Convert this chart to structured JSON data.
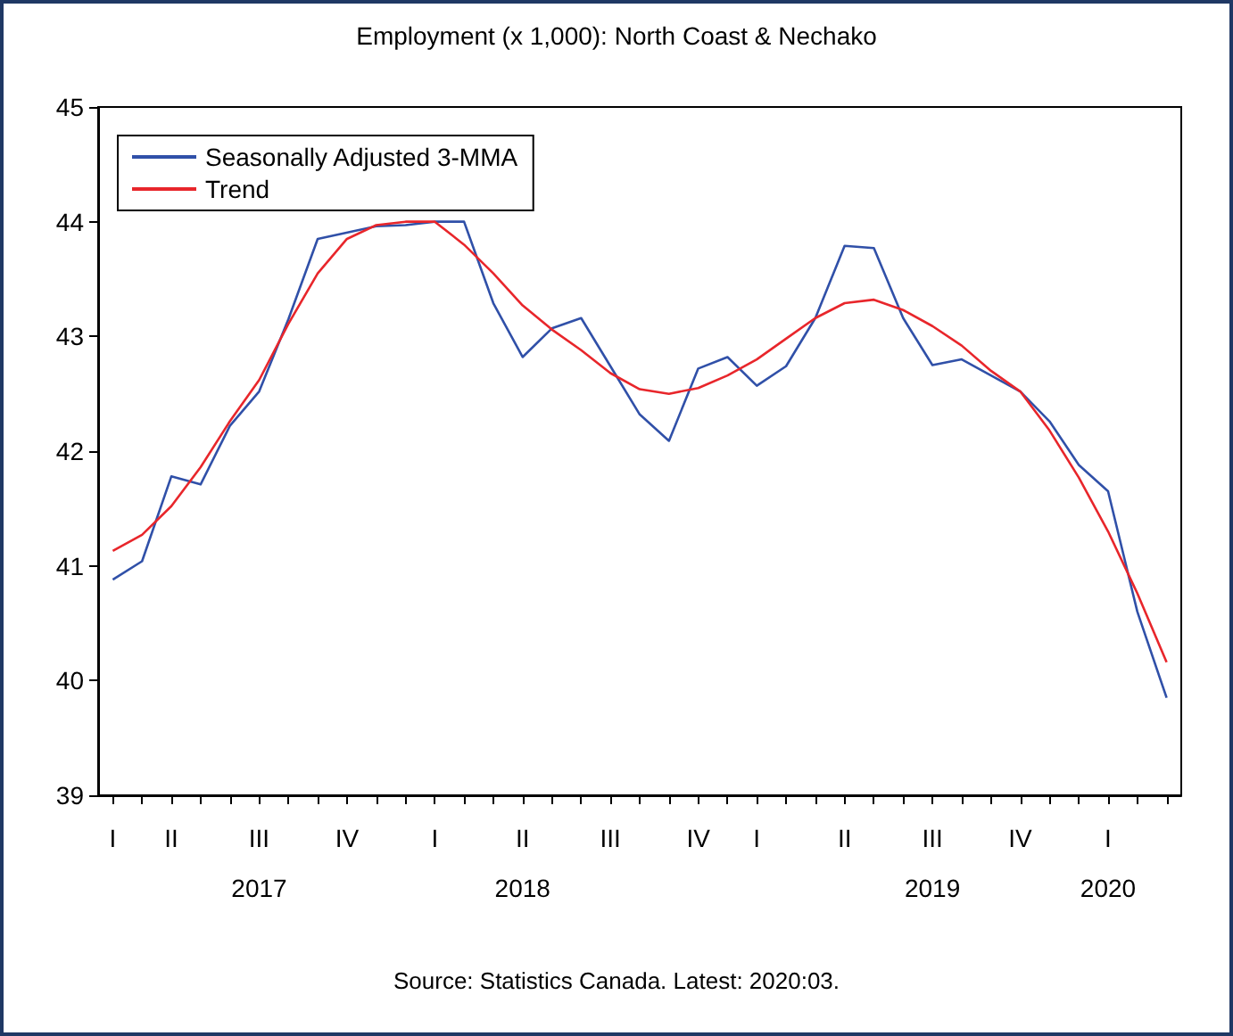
{
  "chart_data": {
    "type": "line",
    "title": "Employment (x 1,000): North Coast & Nechako",
    "categories": [
      "I",
      null,
      "II",
      null,
      null,
      "III\n2017",
      null,
      null,
      "IV",
      null,
      null,
      "I",
      null,
      null,
      "II\n2018",
      null,
      null,
      "III",
      null,
      null,
      "IV",
      null,
      "I",
      null,
      null,
      "II",
      null,
      null,
      "III\n2019",
      null,
      null,
      "IV",
      null,
      null,
      "I\n2020",
      null,
      null
    ],
    "series": [
      {
        "name": "Seasonally Adjusted 3-MMA",
        "color": "#3050a8",
        "values": [
          40.88,
          41.04,
          41.78,
          41.71,
          42.22,
          42.52,
          43.15,
          43.85,
          null,
          43.96,
          43.97,
          44.0,
          44.0,
          43.29,
          42.82,
          43.07,
          43.16,
          42.74,
          42.32,
          42.09,
          42.72,
          42.82,
          42.57,
          42.74,
          43.16,
          43.79,
          43.77,
          43.16,
          42.75,
          42.8,
          42.66,
          42.52,
          42.26,
          41.88,
          41.65,
          40.6,
          39.85
        ]
      },
      {
        "name": "Trend",
        "color": "#e8262b",
        "values": [
          41.13,
          41.27,
          41.52,
          41.86,
          42.26,
          42.62,
          43.11,
          43.55,
          43.85,
          43.97,
          44.0,
          44.0,
          43.8,
          43.55,
          43.27,
          43.06,
          42.88,
          42.68,
          42.54,
          42.5,
          42.55,
          42.66,
          42.8,
          42.98,
          43.16,
          43.29,
          43.32,
          43.23,
          43.09,
          42.92,
          42.7,
          42.52,
          42.18,
          41.77,
          41.3,
          40.76,
          40.16
        ]
      }
    ],
    "ylim": [
      39,
      45
    ],
    "yticks": [
      39,
      40,
      41,
      42,
      43,
      44,
      45
    ],
    "grid": false,
    "legend": "top left",
    "marker": "none",
    "line_style": "solid",
    "annotations": [
      "Source: Statistics Canada. Latest: 2020:03."
    ]
  }
}
